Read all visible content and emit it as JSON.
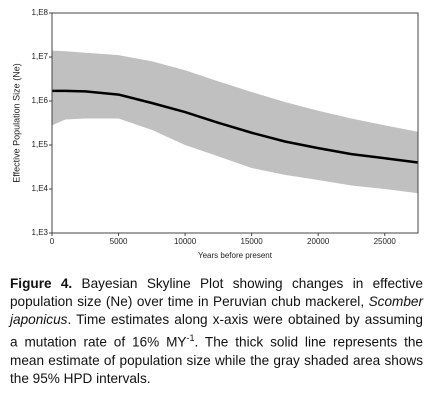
{
  "chart_data": {
    "type": "line",
    "log_y": true,
    "xlabel": "Years before present",
    "ylabel": "Effective Population Size (Ne)",
    "x": [
      0,
      1000,
      2500,
      5000,
      7500,
      10000,
      12500,
      15000,
      17500,
      20000,
      22500,
      25000,
      27500
    ],
    "series": [
      {
        "color": "#000000",
        "values": [
          1700000,
          1700000,
          1650000,
          1400000,
          900000,
          560000,
          320000,
          190000,
          120000,
          85000,
          62000,
          50000,
          40000
        ]
      }
    ],
    "band": {
      "color": "#c0c0c0",
      "upper": [
        14000000,
        13500000,
        12500000,
        11000000,
        8000000,
        5000000,
        2800000,
        1600000,
        950000,
        600000,
        400000,
        280000,
        200000
      ],
      "lower": [
        280000,
        380000,
        400000,
        400000,
        220000,
        100000,
        55000,
        30000,
        21000,
        16000,
        12000,
        10000,
        8000
      ]
    },
    "xlim": [
      0,
      27500
    ],
    "xticks": [
      0,
      5000,
      10000,
      15000,
      20000,
      25000
    ],
    "ylim": [
      1000,
      100000000
    ],
    "yticks": [
      {
        "value": 1000,
        "label": "1,E3"
      },
      {
        "value": 10000,
        "label": "1,E4"
      },
      {
        "value": 100000,
        "label": "1,E5"
      },
      {
        "value": 1000000,
        "label": "1,E6"
      },
      {
        "value": 10000000,
        "label": "1,E7"
      },
      {
        "value": 100000000,
        "label": "1,E8"
      }
    ]
  },
  "caption": {
    "label": "Figure 4.",
    "parts": [
      " Bayesian Skyline Plot showing changes in effective population size (Ne) over time in Peruvian chub mackerel, ",
      "Scomber japonicus",
      ". Time estimates along x-axis were obtained by assuming a mutation rate of 16% MY",
      "-1",
      ". The thick solid line represents the mean estimate of population size while the gray shaded area shows the 95% HPD intervals."
    ]
  }
}
